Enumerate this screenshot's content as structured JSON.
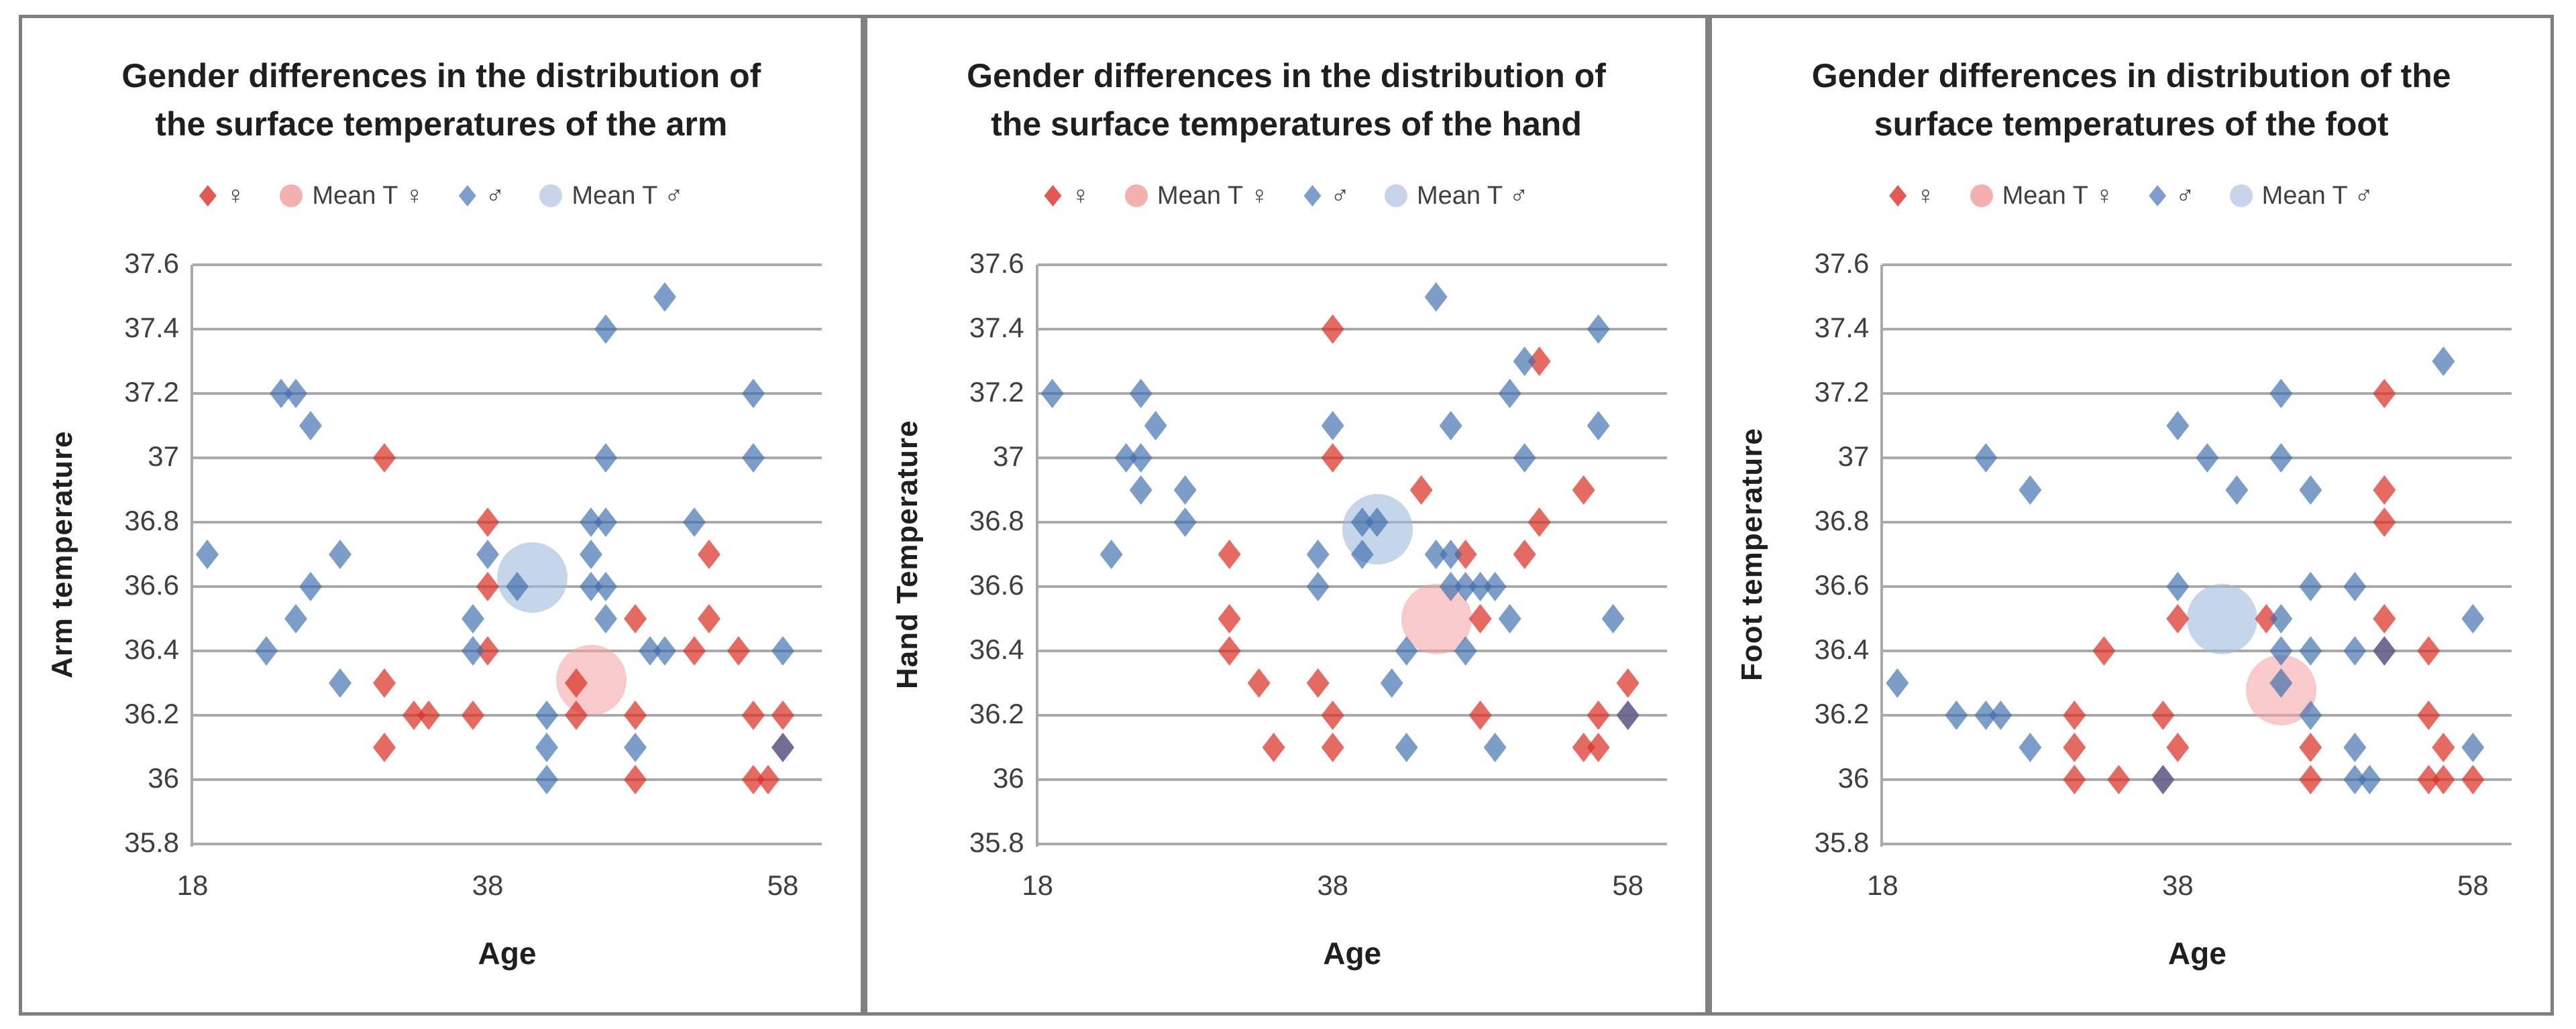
{
  "figure": {
    "background": "#ffffff",
    "border_color": "#7f7f7f",
    "divider_color": "#808080",
    "gridline_color": "#a9a9a9"
  },
  "legend": {
    "items": [
      {
        "label": "♀",
        "marker": "diamond",
        "color": "#e25a54"
      },
      {
        "label": "Mean T ♀",
        "marker": "circle",
        "color": "#f4b0af"
      },
      {
        "label": "♂",
        "marker": "diamond",
        "color": "#7e9fce"
      },
      {
        "label": "Mean T ♂",
        "marker": "circle",
        "color": "#c7d4e9"
      }
    ]
  },
  "colors": {
    "female_point": "rgba(217,48,37,0.72)",
    "female_mean": "rgba(242,161,158,0.55)",
    "male_point": "rgba(62,111,173,0.68)",
    "male_mean": "rgba(159,185,220,0.6)"
  },
  "chart_data": [
    {
      "type": "scatter",
      "title_line1": "Gender differences in the distribution of",
      "title_line2": "the surface temperatures of the arm",
      "xlabel": "Age",
      "ylabel": "Arm temperature",
      "xticks": [
        18,
        38,
        58
      ],
      "yticks": [
        37.6,
        37.4,
        37.2,
        37,
        36.8,
        36.6,
        36.4,
        36.2,
        36,
        35.8
      ],
      "xlim": [
        18,
        60.6
      ],
      "ylim": [
        35.8,
        37.6
      ],
      "grid": true,
      "legend_position": "top",
      "series": [
        {
          "name": "♀",
          "marker": "diamond",
          "role": "female",
          "points": [
            [
              31,
              37
            ],
            [
              38,
              36.8
            ],
            [
              53,
              36.7
            ],
            [
              38,
              36.6
            ],
            [
              48,
              36.5
            ],
            [
              53,
              36.5
            ],
            [
              38,
              36.4
            ],
            [
              52,
              36.4
            ],
            [
              55,
              36.4
            ],
            [
              31,
              36.3
            ],
            [
              44,
              36.3
            ],
            [
              33,
              36.2
            ],
            [
              34,
              36.2
            ],
            [
              37,
              36.2
            ],
            [
              44,
              36.2
            ],
            [
              48,
              36.2
            ],
            [
              56,
              36.2
            ],
            [
              58,
              36.2
            ],
            [
              31,
              36.1
            ],
            [
              58,
              36.1
            ],
            [
              48,
              36
            ],
            [
              56,
              36
            ],
            [
              57,
              36
            ]
          ]
        },
        {
          "name": "Mean T ♀",
          "marker": "bubble",
          "role": "female_mean",
          "points": [
            [
              45,
              36.31
            ]
          ]
        },
        {
          "name": "♂",
          "marker": "diamond",
          "role": "male",
          "points": [
            [
              50,
              37.5
            ],
            [
              46,
              37.4
            ],
            [
              24,
              37.2
            ],
            [
              25,
              37.2
            ],
            [
              56,
              37.2
            ],
            [
              26,
              37.1
            ],
            [
              46,
              37
            ],
            [
              56,
              37
            ],
            [
              45,
              36.8
            ],
            [
              46,
              36.8
            ],
            [
              52,
              36.8
            ],
            [
              19,
              36.7
            ],
            [
              28,
              36.7
            ],
            [
              38,
              36.7
            ],
            [
              45,
              36.7
            ],
            [
              26,
              36.6
            ],
            [
              40,
              36.6
            ],
            [
              45,
              36.6
            ],
            [
              46,
              36.6
            ],
            [
              25,
              36.5
            ],
            [
              37,
              36.5
            ],
            [
              46,
              36.5
            ],
            [
              23,
              36.4
            ],
            [
              37,
              36.4
            ],
            [
              49,
              36.4
            ],
            [
              50,
              36.4
            ],
            [
              58,
              36.4
            ],
            [
              28,
              36.3
            ],
            [
              42,
              36.2
            ],
            [
              42,
              36.1
            ],
            [
              48,
              36.1
            ],
            [
              58,
              36.1
            ],
            [
              42,
              36
            ]
          ]
        },
        {
          "name": "Mean T ♂",
          "marker": "bubble",
          "role": "male_mean",
          "points": [
            [
              41,
              36.63
            ]
          ]
        }
      ]
    },
    {
      "type": "scatter",
      "title_line1": "Gender differences in the distribution of",
      "title_line2": "the surface temperatures of the hand",
      "xlabel": "Age",
      "ylabel": "Hand Temperature",
      "xticks": [
        18,
        38,
        58
      ],
      "yticks": [
        37.6,
        37.4,
        37.2,
        37,
        36.8,
        36.6,
        36.4,
        36.2,
        36,
        35.8
      ],
      "xlim": [
        18,
        60.6
      ],
      "ylim": [
        35.8,
        37.6
      ],
      "grid": true,
      "legend_position": "top",
      "series": [
        {
          "name": "♀",
          "marker": "diamond",
          "role": "female",
          "points": [
            [
              38,
              37.4
            ],
            [
              52,
              37.3
            ],
            [
              38,
              37
            ],
            [
              44,
              36.9
            ],
            [
              55,
              36.9
            ],
            [
              52,
              36.8
            ],
            [
              31,
              36.7
            ],
            [
              47,
              36.7
            ],
            [
              51,
              36.7
            ],
            [
              31,
              36.5
            ],
            [
              48,
              36.5
            ],
            [
              31,
              36.4
            ],
            [
              33,
              36.3
            ],
            [
              37,
              36.3
            ],
            [
              58,
              36.3
            ],
            [
              38,
              36.2
            ],
            [
              48,
              36.2
            ],
            [
              56,
              36.2
            ],
            [
              58,
              36.2
            ],
            [
              34,
              36.1
            ],
            [
              38,
              36.1
            ],
            [
              55,
              36.1
            ],
            [
              56,
              36.1
            ]
          ]
        },
        {
          "name": "Mean T ♀",
          "marker": "bubble",
          "role": "female_mean",
          "points": [
            [
              45,
              36.5
            ]
          ]
        },
        {
          "name": "♂",
          "marker": "diamond",
          "role": "male",
          "points": [
            [
              45,
              37.5
            ],
            [
              56,
              37.4
            ],
            [
              51,
              37.3
            ],
            [
              19,
              37.2
            ],
            [
              25,
              37.2
            ],
            [
              50,
              37.2
            ],
            [
              26,
              37.1
            ],
            [
              38,
              37.1
            ],
            [
              46,
              37.1
            ],
            [
              56,
              37.1
            ],
            [
              24,
              37
            ],
            [
              25,
              37
            ],
            [
              51,
              37
            ],
            [
              25,
              36.9
            ],
            [
              28,
              36.9
            ],
            [
              28,
              36.8
            ],
            [
              40,
              36.8
            ],
            [
              41,
              36.8
            ],
            [
              23,
              36.7
            ],
            [
              37,
              36.7
            ],
            [
              40,
              36.7
            ],
            [
              45,
              36.7
            ],
            [
              46,
              36.7
            ],
            [
              37,
              36.6
            ],
            [
              46,
              36.6
            ],
            [
              47,
              36.6
            ],
            [
              48,
              36.6
            ],
            [
              49,
              36.6
            ],
            [
              50,
              36.5
            ],
            [
              57,
              36.5
            ],
            [
              43,
              36.4
            ],
            [
              47,
              36.4
            ],
            [
              42,
              36.3
            ],
            [
              58,
              36.2
            ],
            [
              43,
              36.1
            ],
            [
              49,
              36.1
            ]
          ]
        },
        {
          "name": "Mean T ♂",
          "marker": "bubble",
          "role": "male_mean",
          "points": [
            [
              41,
              36.78
            ]
          ]
        }
      ]
    },
    {
      "type": "scatter",
      "title_line1": "Gender differences in distribution of the",
      "title_line2": "surface temperatures of the foot",
      "xlabel": "Age",
      "ylabel": "Foot temperature",
      "xticks": [
        18,
        38,
        58
      ],
      "yticks": [
        37.6,
        37.4,
        37.2,
        37,
        36.8,
        36.6,
        36.4,
        36.2,
        36,
        35.8
      ],
      "xlim": [
        18,
        60.6
      ],
      "ylim": [
        35.8,
        37.6
      ],
      "grid": true,
      "legend_position": "top",
      "series": [
        {
          "name": "♀",
          "marker": "diamond",
          "role": "female",
          "points": [
            [
              52,
              37.2
            ],
            [
              52,
              36.9
            ],
            [
              52,
              36.8
            ],
            [
              38,
              36.5
            ],
            [
              44,
              36.5
            ],
            [
              52,
              36.5
            ],
            [
              33,
              36.4
            ],
            [
              52,
              36.4
            ],
            [
              55,
              36.4
            ],
            [
              31,
              36.2
            ],
            [
              37,
              36.2
            ],
            [
              55,
              36.2
            ],
            [
              31,
              36.1
            ],
            [
              38,
              36.1
            ],
            [
              47,
              36.1
            ],
            [
              56,
              36.1
            ],
            [
              31,
              36
            ],
            [
              34,
              36
            ],
            [
              37,
              36
            ],
            [
              47,
              36
            ],
            [
              55,
              36
            ],
            [
              56,
              36
            ],
            [
              58,
              36
            ]
          ]
        },
        {
          "name": "Mean T ♀",
          "marker": "bubble",
          "role": "female_mean",
          "points": [
            [
              45,
              36.28
            ]
          ]
        },
        {
          "name": "♂",
          "marker": "diamond",
          "role": "male",
          "points": [
            [
              56,
              37.3
            ],
            [
              45,
              37.2
            ],
            [
              38,
              37.1
            ],
            [
              25,
              37
            ],
            [
              40,
              37
            ],
            [
              45,
              37
            ],
            [
              28,
              36.9
            ],
            [
              42,
              36.9
            ],
            [
              47,
              36.9
            ],
            [
              38,
              36.6
            ],
            [
              47,
              36.6
            ],
            [
              50,
              36.6
            ],
            [
              45,
              36.5
            ],
            [
              58,
              36.5
            ],
            [
              45,
              36.4
            ],
            [
              47,
              36.4
            ],
            [
              50,
              36.4
            ],
            [
              52,
              36.4
            ],
            [
              19,
              36.3
            ],
            [
              45,
              36.3
            ],
            [
              23,
              36.2
            ],
            [
              25,
              36.2
            ],
            [
              26,
              36.2
            ],
            [
              47,
              36.2
            ],
            [
              28,
              36.1
            ],
            [
              50,
              36.1
            ],
            [
              58,
              36.1
            ],
            [
              37,
              36
            ],
            [
              50,
              36
            ],
            [
              51,
              36
            ]
          ]
        },
        {
          "name": "Mean T ♂",
          "marker": "bubble",
          "role": "male_mean",
          "points": [
            [
              41,
              36.5
            ]
          ]
        }
      ]
    }
  ]
}
